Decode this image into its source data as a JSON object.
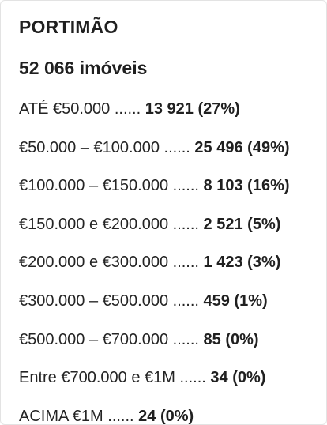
{
  "header": {
    "city": "PORTIMÃO",
    "total": "52 066 imóveis"
  },
  "ranges": [
    {
      "label": "ATÉ €50.000",
      "dots": "......",
      "count": "13 921",
      "percent": "(27%)"
    },
    {
      "label": "€50.000 – €100.000",
      "dots": "......",
      "count": "25 496",
      "percent": "(49%)"
    },
    {
      "label": "€100.000 – €150.000",
      "dots": "......",
      "count": "8 103",
      "percent": "(16%)"
    },
    {
      "label": "€150.000 e €200.000",
      "dots": "......",
      "count": "2 521",
      "percent": "(5%)"
    },
    {
      "label": "€200.000 e €300.000",
      "dots": "......",
      "count": "1 423",
      "percent": "(3%)"
    },
    {
      "label": "€300.000 – €500.000",
      "dots": "......",
      "count": "459",
      "percent": "(1%)"
    },
    {
      "label": "€500.000 – €700.000",
      "dots": "......",
      "count": "85",
      "percent": "(0%)"
    },
    {
      "label": "Entre €700.000 e €1M",
      "dots": "......",
      "count": "34",
      "percent": "(0%)"
    },
    {
      "label": "ACIMA €1M",
      "dots": "......",
      "count": "24",
      "percent": "(0%)"
    }
  ]
}
